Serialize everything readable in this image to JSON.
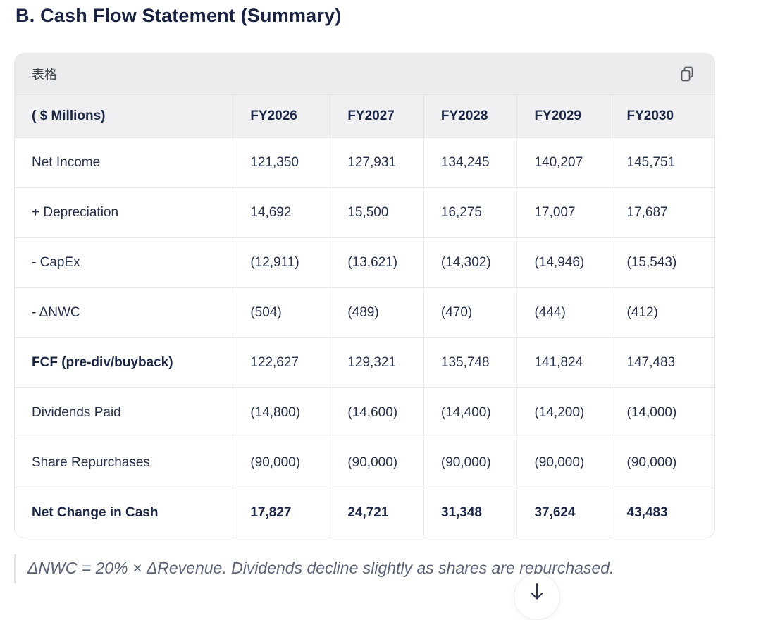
{
  "page": {
    "title": "B. Cash Flow Statement (Summary)"
  },
  "card": {
    "toolbar_label": "表格",
    "copy_icon": "copy-icon"
  },
  "table": {
    "columns": [
      "( $ Millions)",
      "FY2026",
      "FY2027",
      "FY2028",
      "FY2029",
      "FY2030"
    ],
    "rows": [
      {
        "label": "Net Income",
        "values": [
          "121,350",
          "127,931",
          "134,245",
          "140,207",
          "145,751"
        ],
        "bold_label": false,
        "bold_values": false
      },
      {
        "label": "+ Depreciation",
        "values": [
          "14,692",
          "15,500",
          "16,275",
          "17,007",
          "17,687"
        ],
        "bold_label": false,
        "bold_values": false
      },
      {
        "label": "- CapEx",
        "values": [
          "(12,911)",
          "(13,621)",
          "(14,302)",
          "(14,946)",
          "(15,543)"
        ],
        "bold_label": false,
        "bold_values": false
      },
      {
        "label": "- ΔNWC",
        "values": [
          "(504)",
          "(489)",
          "(470)",
          "(444)",
          "(412)"
        ],
        "bold_label": false,
        "bold_values": false
      },
      {
        "label": "FCF (pre-div/buyback)",
        "values": [
          "122,627",
          "129,321",
          "135,748",
          "141,824",
          "147,483"
        ],
        "bold_label": true,
        "bold_values": false
      },
      {
        "label": "Dividends Paid",
        "values": [
          "(14,800)",
          "(14,600)",
          "(14,400)",
          "(14,200)",
          "(14,000)"
        ],
        "bold_label": false,
        "bold_values": false
      },
      {
        "label": "Share Repurchases",
        "values": [
          "(90,000)",
          "(90,000)",
          "(90,000)",
          "(90,000)",
          "(90,000)"
        ],
        "bold_label": false,
        "bold_values": false
      },
      {
        "label": "Net Change in Cash",
        "values": [
          "17,827",
          "24,721",
          "31,348",
          "37,624",
          "43,483"
        ],
        "bold_label": true,
        "bold_values": true
      }
    ]
  },
  "note": {
    "text": "ΔNWC = 20% × ΔRevenue. Dividends decline slightly as shares are repurchased."
  },
  "scroll_button": {
    "icon": "arrow-down-icon"
  },
  "colors": {
    "heading": "#1a2342",
    "toolbar_bg": "#ececee",
    "header_row_bg": "#f0f0f3",
    "border": "#e8e8ec",
    "body_text": "#273049",
    "note_text": "#5a6175"
  }
}
